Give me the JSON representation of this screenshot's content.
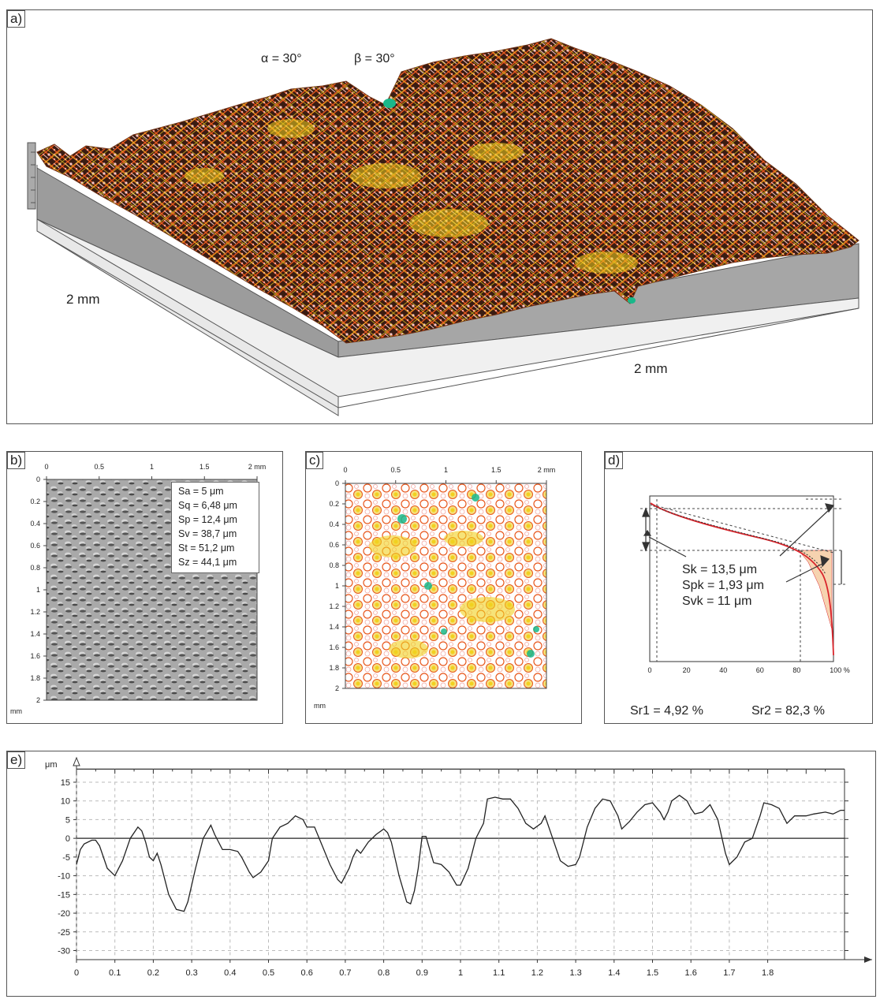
{
  "panels": {
    "a": {
      "label": "a)",
      "alpha": "α = 30°",
      "beta": "β = 30°",
      "dim_left": "2 mm",
      "dim_right": "2 mm"
    },
    "b": {
      "label": "b)",
      "x_ticks": [
        "0",
        "0.5",
        "1",
        "1.5",
        "2 mm"
      ],
      "y_ticks": [
        "0",
        "0.2",
        "0.4",
        "0.6",
        "0.8",
        "1",
        "1.2",
        "1.4",
        "1.6",
        "1.8",
        "2"
      ],
      "y_unit": "mm",
      "stats": [
        "Sa = 5 μm",
        "Sq = 6,48 μm",
        "Sp = 12,4 μm",
        "Sv = 38,7 μm",
        "St = 51,2 μm",
        "Sz = 44,1 μm"
      ]
    },
    "c": {
      "label": "c)",
      "x_ticks": [
        "0",
        "0.5",
        "1",
        "1.5",
        "2 mm"
      ],
      "y_ticks": [
        "0",
        "0.2",
        "0.4",
        "0.6",
        "0.8",
        "1",
        "1.2",
        "1.4",
        "1.6",
        "1.8",
        "2"
      ],
      "y_unit": "mm"
    },
    "d": {
      "label": "d)",
      "x_ticks": [
        "0",
        "20",
        "40",
        "60",
        "80",
        "100 %"
      ],
      "sk": "Sk = 13,5 μm",
      "spk": "Spk = 1,93 μm",
      "svk": "Svk = 11 μm",
      "sr1": "Sr1 = 4,92 %",
      "sr2": "Sr2 = 82,3 %"
    },
    "e": {
      "label": "e)",
      "y_unit": "μm"
    }
  },
  "colors": {
    "peak": "#f6c6c6",
    "mid": "#e8581e",
    "low": "#f1d11f",
    "valley": "#19b88a",
    "bearing_curve": "#d9232a",
    "bearing_fill": "#f6d3b0"
  },
  "chart_data": {
    "type": "line",
    "panel": "e",
    "ylabel": "μm",
    "ylim": [
      -32,
      19
    ],
    "xlim": [
      0,
      2
    ],
    "x_ticks": [
      "0",
      "0.1",
      "0.2",
      "0.3",
      "0.4",
      "0.5",
      "0.6",
      "0.7",
      "0.8",
      "0.9",
      "1",
      "1.1",
      "1.2",
      "1.3",
      "1.4",
      "1.5",
      "1.6",
      "1.7",
      "1.8"
    ],
    "y_ticks": [
      "15",
      "10",
      "5",
      "0",
      "-5",
      "-10",
      "-15",
      "-20",
      "-25",
      "-30"
    ],
    "grid": true,
    "series": [
      {
        "points": [
          [
            0.0,
            -7
          ],
          [
            0.01,
            -3
          ],
          [
            0.02,
            -1.5
          ],
          [
            0.04,
            -0.5
          ],
          [
            0.05,
            -0.5
          ],
          [
            0.06,
            -2
          ],
          [
            0.08,
            -8
          ],
          [
            0.1,
            -10
          ],
          [
            0.12,
            -6
          ],
          [
            0.14,
            0
          ],
          [
            0.16,
            3
          ],
          [
            0.17,
            2
          ],
          [
            0.18,
            -1
          ],
          [
            0.19,
            -5
          ],
          [
            0.2,
            -6
          ],
          [
            0.21,
            -4
          ],
          [
            0.22,
            -7
          ],
          [
            0.24,
            -15
          ],
          [
            0.26,
            -19
          ],
          [
            0.28,
            -19.5
          ],
          [
            0.29,
            -17
          ],
          [
            0.31,
            -8
          ],
          [
            0.33,
            0
          ],
          [
            0.35,
            3.5
          ],
          [
            0.36,
            1
          ],
          [
            0.38,
            -3
          ],
          [
            0.4,
            -3
          ],
          [
            0.42,
            -3.5
          ],
          [
            0.43,
            -5
          ],
          [
            0.45,
            -9
          ],
          [
            0.46,
            -10.5
          ],
          [
            0.48,
            -9
          ],
          [
            0.5,
            -6
          ],
          [
            0.51,
            0
          ],
          [
            0.53,
            3
          ],
          [
            0.55,
            4
          ],
          [
            0.57,
            6
          ],
          [
            0.59,
            5
          ],
          [
            0.6,
            3
          ],
          [
            0.62,
            3
          ],
          [
            0.64,
            -2
          ],
          [
            0.66,
            -7
          ],
          [
            0.68,
            -11
          ],
          [
            0.69,
            -12
          ],
          [
            0.71,
            -8
          ],
          [
            0.72,
            -5
          ],
          [
            0.73,
            -3
          ],
          [
            0.74,
            -4
          ],
          [
            0.76,
            -1
          ],
          [
            0.78,
            1
          ],
          [
            0.8,
            2.5
          ],
          [
            0.81,
            1.5
          ],
          [
            0.82,
            -1
          ],
          [
            0.84,
            -10
          ],
          [
            0.86,
            -17
          ],
          [
            0.87,
            -17.5
          ],
          [
            0.88,
            -14
          ],
          [
            0.89,
            -8
          ],
          [
            0.9,
            0.5
          ],
          [
            0.91,
            0.5
          ],
          [
            0.92,
            -3
          ],
          [
            0.93,
            -6.5
          ],
          [
            0.95,
            -7
          ],
          [
            0.97,
            -9
          ],
          [
            0.99,
            -12.5
          ],
          [
            1.0,
            -12.5
          ],
          [
            1.02,
            -8
          ],
          [
            1.04,
            0
          ],
          [
            1.06,
            4
          ],
          [
            1.07,
            10.5
          ],
          [
            1.09,
            11
          ],
          [
            1.11,
            10.5
          ],
          [
            1.13,
            10.5
          ],
          [
            1.15,
            8
          ],
          [
            1.17,
            4
          ],
          [
            1.19,
            2.5
          ],
          [
            1.21,
            4
          ],
          [
            1.22,
            6
          ],
          [
            1.24,
            0
          ],
          [
            1.26,
            -6
          ],
          [
            1.28,
            -7.5
          ],
          [
            1.3,
            -7
          ],
          [
            1.31,
            -5
          ],
          [
            1.33,
            3
          ],
          [
            1.35,
            8
          ],
          [
            1.37,
            10.5
          ],
          [
            1.39,
            10
          ],
          [
            1.41,
            6
          ],
          [
            1.42,
            2.5
          ],
          [
            1.44,
            4.5
          ],
          [
            1.46,
            7
          ],
          [
            1.48,
            9
          ],
          [
            1.5,
            9.5
          ],
          [
            1.52,
            7
          ],
          [
            1.53,
            5
          ],
          [
            1.54,
            7
          ],
          [
            1.55,
            10
          ],
          [
            1.57,
            11.5
          ],
          [
            1.59,
            10
          ],
          [
            1.6,
            8
          ],
          [
            1.61,
            6.5
          ],
          [
            1.63,
            7
          ],
          [
            1.65,
            9
          ],
          [
            1.67,
            5
          ],
          [
            1.69,
            -4
          ],
          [
            1.7,
            -7
          ],
          [
            1.72,
            -5
          ],
          [
            1.74,
            -1
          ],
          [
            1.76,
            0
          ],
          [
            1.78,
            6
          ],
          [
            1.79,
            9.5
          ],
          [
            1.81,
            9
          ],
          [
            1.83,
            8
          ],
          [
            1.85,
            4
          ],
          [
            1.87,
            6
          ],
          [
            1.9,
            6
          ],
          [
            1.92,
            6.5
          ],
          [
            1.95,
            7
          ],
          [
            1.97,
            6.5
          ],
          [
            1.99,
            7.5
          ],
          [
            2.0,
            7.5
          ]
        ]
      }
    ]
  }
}
